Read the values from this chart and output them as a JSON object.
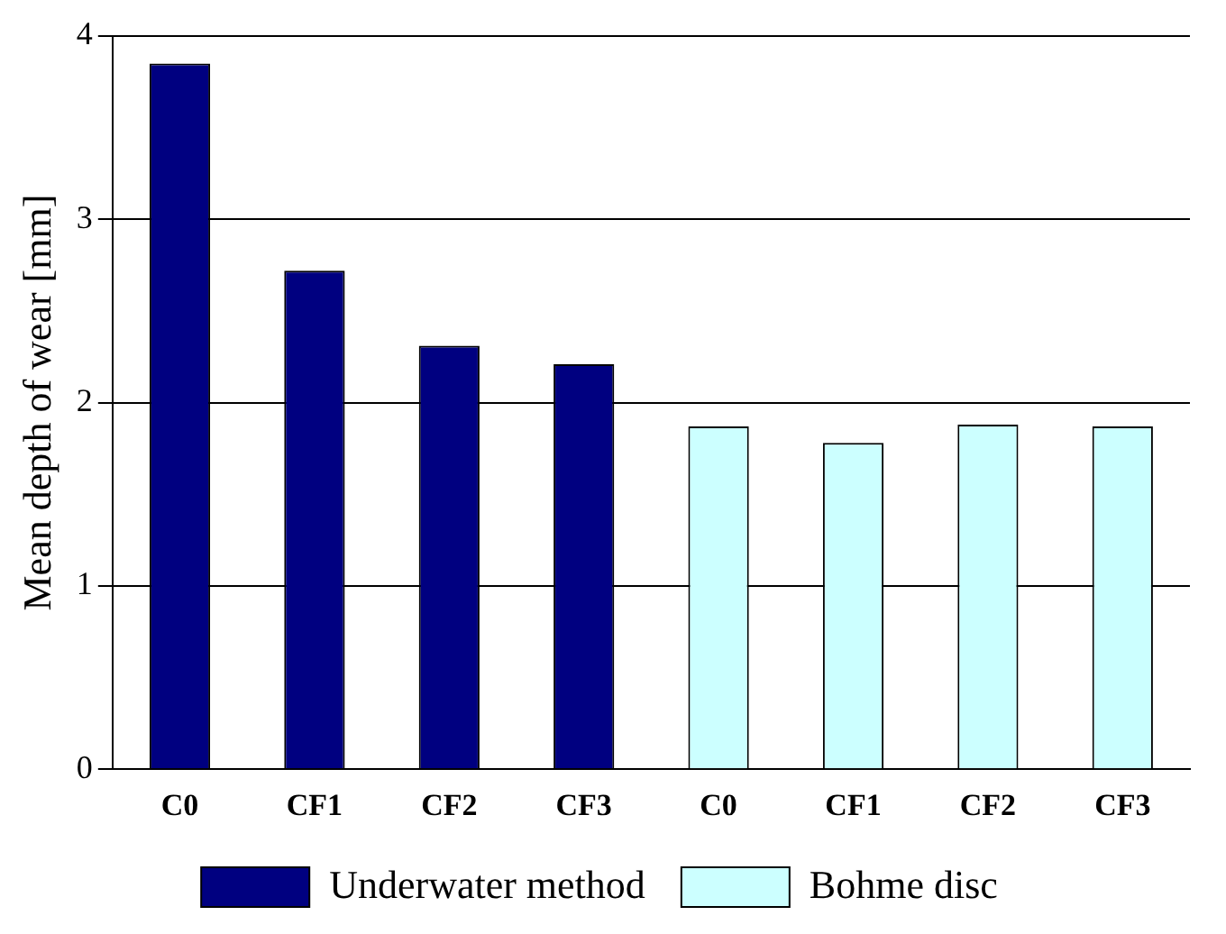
{
  "chart_data": {
    "type": "bar",
    "ylabel": "Mean depth of wear [mm]",
    "categories": [
      "C0",
      "CF1",
      "CF2",
      "CF3",
      "C0",
      "CF1",
      "CF2",
      "CF3"
    ],
    "series": [
      {
        "name": "Underwater method",
        "color": "#000080",
        "values": [
          3.85,
          2.72,
          2.31,
          2.21,
          null,
          null,
          null,
          null
        ]
      },
      {
        "name": "Bohme disc",
        "color": "#ccffff",
        "values": [
          null,
          null,
          null,
          null,
          1.87,
          1.78,
          1.88,
          1.87
        ]
      }
    ],
    "ylim": [
      0,
      4
    ],
    "yticks": [
      0,
      1,
      2,
      3,
      4
    ],
    "grid": "y",
    "legend": "bottom"
  }
}
